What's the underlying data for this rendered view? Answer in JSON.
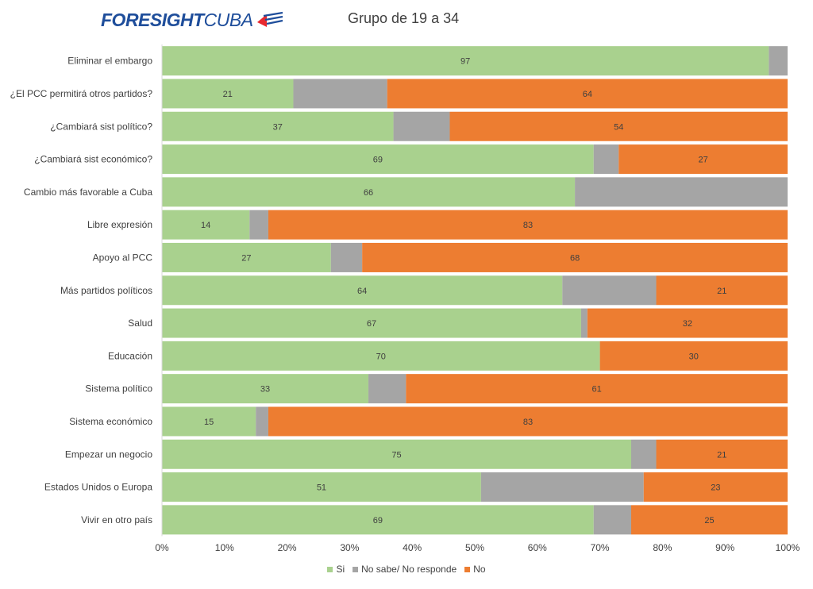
{
  "header": {
    "logo_text_bold": "FORESIGHT",
    "logo_text_light": "CUBA",
    "title": "Grupo de 19 a 34"
  },
  "colors": {
    "si": "#a9d18e",
    "ns": "#a5a5a5",
    "no": "#ed7d31",
    "logo": "#1f4e9b",
    "logo_flag_red": "#e8292f"
  },
  "chart_data": {
    "type": "bar",
    "orientation": "horizontal",
    "stacked": "percent",
    "categories": [
      "Eliminar el embargo",
      "¿El PCC permitirá otros partidos?",
      "¿Cambiará sist político?",
      "¿Cambiará sist económico?",
      "Cambio más favorable a Cuba",
      "Libre expresión",
      "Apoyo al PCC",
      "Más partidos políticos",
      "Salud",
      "Educación",
      "Sistema político",
      "Sistema económico",
      "Empezar un negocio",
      "Estados Unidos o Europa",
      "Vivir en otro país"
    ],
    "series": [
      {
        "name": "Si",
        "values": [
          97,
          21,
          37,
          69,
          66,
          14,
          27,
          64,
          67,
          70,
          33,
          15,
          75,
          51,
          69
        ]
      },
      {
        "name": "No sabe/ No responde",
        "values": [
          3,
          15,
          9,
          4,
          34,
          3,
          5,
          15,
          1,
          0,
          6,
          2,
          4,
          26,
          6
        ]
      },
      {
        "name": "No",
        "values": [
          0,
          64,
          54,
          27,
          0,
          83,
          68,
          21,
          32,
          30,
          61,
          83,
          21,
          23,
          25
        ]
      }
    ],
    "data_labels": {
      "Si": [
        "97",
        "21",
        "37",
        "69",
        "66",
        "14",
        "27",
        "64",
        "67",
        "70",
        "33",
        "15",
        "75",
        "51",
        "69"
      ],
      "No": [
        "",
        "64",
        "54",
        "27",
        "",
        "83",
        "68",
        "21",
        "32",
        "30",
        "61",
        "83",
        "21",
        "23",
        "25"
      ]
    },
    "xaxis": {
      "range": [
        0,
        100
      ],
      "ticks": [
        "0%",
        "10%",
        "20%",
        "30%",
        "40%",
        "50%",
        "60%",
        "70%",
        "80%",
        "90%",
        "100%"
      ]
    },
    "grid": false,
    "legend_position": "bottom"
  }
}
